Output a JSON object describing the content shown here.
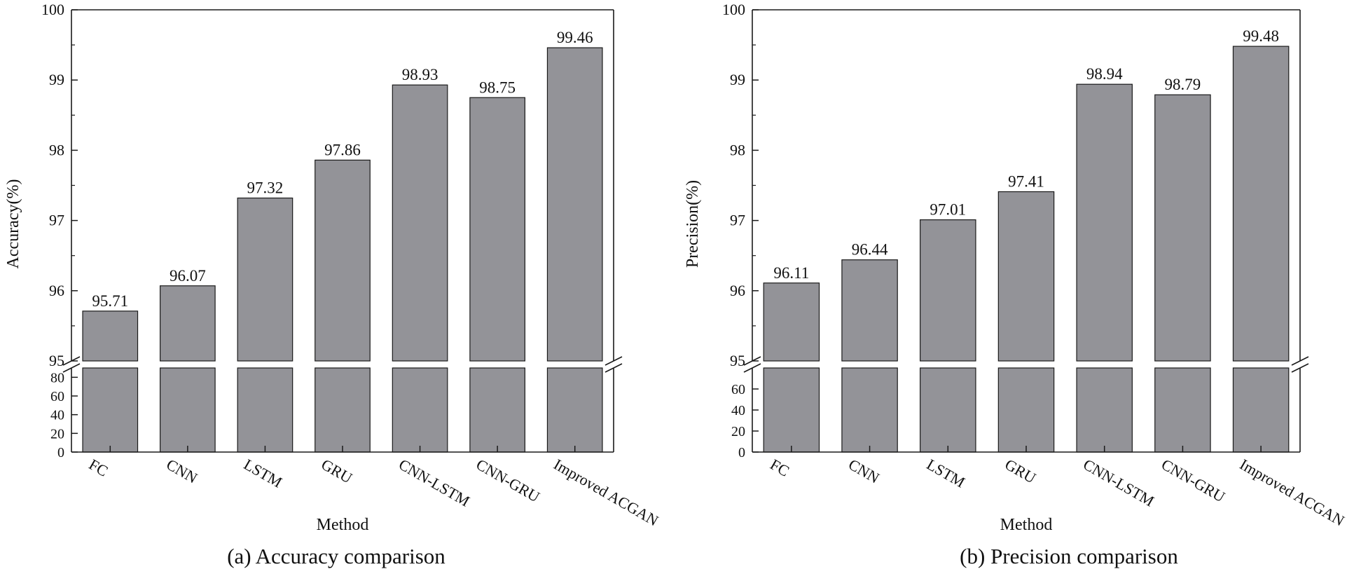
{
  "colors": {
    "bar_fill": "#939398",
    "bar_stroke": "#1a1a1a",
    "axis": "#1a1a1a",
    "background": "#ffffff"
  },
  "chart_data": [
    {
      "type": "bar",
      "title": "(a) Accuracy comparison",
      "xlabel": "Method",
      "ylabel": "Accuracy(%)",
      "categories": [
        "FC",
        "CNN",
        "LSTM",
        "GRU",
        "CNN-LSTM",
        "CNN-GRU",
        "Improved ACGAN"
      ],
      "values": [
        95.71,
        96.07,
        97.32,
        97.86,
        98.93,
        98.75,
        99.46
      ],
      "value_labels": [
        "95.71",
        "96.07",
        "97.32",
        "97.86",
        "98.93",
        "98.75",
        "99.46"
      ],
      "y_break": true,
      "ylim_upper": [
        95,
        100
      ],
      "yticks_upper": [
        "95",
        "96",
        "97",
        "98",
        "99",
        "100"
      ],
      "ylim_lower": [
        0,
        90
      ],
      "yticks_lower": [
        "0",
        "20",
        "40",
        "60",
        "80"
      ]
    },
    {
      "type": "bar",
      "title": "(b) Precision comparison",
      "xlabel": "Method",
      "ylabel": "Precision(%)",
      "categories": [
        "FC",
        "CNN",
        "LSTM",
        "GRU",
        "CNN-LSTM",
        "CNN-GRU",
        "Improved ACGAN"
      ],
      "values": [
        96.11,
        96.44,
        97.01,
        97.41,
        98.94,
        98.79,
        99.48
      ],
      "value_labels": [
        "96.11",
        "96.44",
        "97.01",
        "97.41",
        "98.94",
        "98.79",
        "99.48"
      ],
      "y_break": true,
      "ylim_upper": [
        95,
        100
      ],
      "yticks_upper": [
        "95",
        "96",
        "97",
        "98",
        "99",
        "100"
      ],
      "ylim_lower": [
        0,
        80
      ],
      "yticks_lower": [
        "0",
        "20",
        "40",
        "60"
      ]
    }
  ]
}
